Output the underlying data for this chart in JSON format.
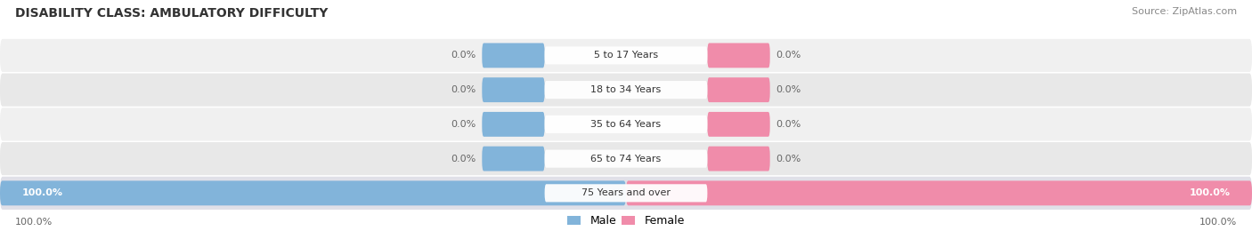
{
  "title": "DISABILITY CLASS: AMBULATORY DIFFICULTY",
  "source": "Source: ZipAtlas.com",
  "categories": [
    "5 to 17 Years",
    "18 to 34 Years",
    "35 to 64 Years",
    "65 to 74 Years",
    "75 Years and over"
  ],
  "male_values": [
    0.0,
    0.0,
    0.0,
    0.0,
    100.0
  ],
  "female_values": [
    0.0,
    0.0,
    0.0,
    0.0,
    100.0
  ],
  "male_color": "#82b4da",
  "female_color": "#f08caa",
  "row_bg_even": "#f0f0f0",
  "row_bg_odd": "#e8e8e8",
  "row_bg_last": "#e0e0e8",
  "title_fontsize": 10,
  "label_fontsize": 8,
  "category_fontsize": 8,
  "legend_fontsize": 9,
  "source_fontsize": 8,
  "max_value": 100.0,
  "figsize": [
    14.06,
    2.69
  ],
  "dpi": 100
}
